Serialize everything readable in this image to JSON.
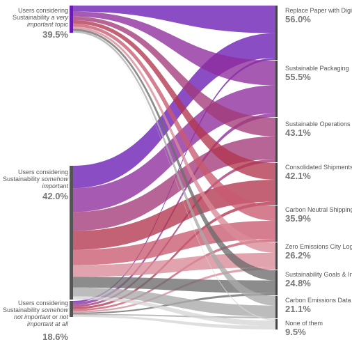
{
  "chart_data": {
    "type": "sankey",
    "segments": [
      {
        "pre": "Users considering Sustainability ",
        "em": "a very important topic",
        "post": "",
        "value": 39.5,
        "pct": "39.5%"
      },
      {
        "pre": "Users considering Sustainability ",
        "em": "somehow important",
        "post": "",
        "value": 42.0,
        "pct": "42.0%"
      },
      {
        "pre": "Users considering Sustainability ",
        "em": "somehow not important",
        "post": " or ",
        "em2": "not important at all",
        "value": 18.6,
        "pct": "18.6%"
      }
    ],
    "features": [
      {
        "name": "Replace Paper with Digital",
        "value": 56.0,
        "pct": "56.0%"
      },
      {
        "name": "Sustainable Packaging",
        "value": 55.5,
        "pct": "55.5%"
      },
      {
        "name": "Sustainable Operations",
        "value": 43.1,
        "pct": "43.1%"
      },
      {
        "name": "Consolidated Shipments",
        "value": 42.1,
        "pct": "42.1%"
      },
      {
        "name": "Carbon Neutral Shipping",
        "value": 35.9,
        "pct": "35.9%"
      },
      {
        "name": "Zero Emissions City Logistics",
        "value": 26.2,
        "pct": "26.2%"
      },
      {
        "name": "Sustainability Goals & Info",
        "value": 24.8,
        "pct": "24.8%"
      },
      {
        "name": "Carbon Emissions Data",
        "value": 21.1,
        "pct": "21.1%"
      },
      {
        "name": "None of them",
        "value": 9.5,
        "pct": "9.5%"
      }
    ],
    "colors": {
      "features": [
        "#6a1bb4",
        "#8e2c9c",
        "#a23a78",
        "#b2354e",
        "#c85a70",
        "#d98a98",
        "#6b6b6b",
        "#a9a9a9",
        "#d6d6d6"
      ],
      "segment_bar": "#6a1bb4",
      "right_bar": "#444444"
    }
  }
}
